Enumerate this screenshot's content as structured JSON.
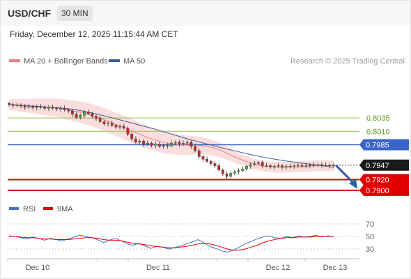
{
  "header": {
    "pair": "USD/CHF",
    "timeframe": "30 MIN",
    "datetime": "Friday, December 12, 2025 11:15:44 AM CET"
  },
  "legend": {
    "ma20_label": "MA 20 + Bollinger Bands",
    "ma50_label": "MA 50",
    "copyright": "Research © 2025 Trading Central",
    "rsi_label": "RSI",
    "rsi_ma_label": "9MA"
  },
  "colors": {
    "ma20": "#f08080",
    "ma50": "#3a5c9a",
    "band_fill": "#fbd7d7",
    "candle_up": "#4caf50",
    "candle_down": "#c62828",
    "pivot": "#3a64c8",
    "resistance": "#8bc34a",
    "support": "#e00000",
    "rsi": "#4472c4",
    "rsi_ma": "#e00000"
  },
  "chart_data": [
    {
      "type": "line",
      "title": "",
      "ylim": [
        0.7883,
        0.813
      ],
      "x_labels": [
        "Dec 10",
        "Dec 11",
        "Dec 12",
        "Dec 13"
      ],
      "price_axis_labels": [
        "0.8035",
        "0.8010",
        "0.7985",
        "0.7947",
        "0.7920",
        "0.7900"
      ],
      "levels": [
        {
          "value": 0.8035,
          "label": "0.8035",
          "kind": "resistance"
        },
        {
          "value": 0.801,
          "label": "0.8010",
          "kind": "resistance"
        },
        {
          "value": 0.7985,
          "label": "0.7985",
          "kind": "pivot"
        },
        {
          "value": 0.7947,
          "label": "0.7947",
          "kind": "last"
        },
        {
          "value": 0.792,
          "label": "0.7920",
          "kind": "support"
        },
        {
          "value": 0.79,
          "label": "0.7900",
          "kind": "support"
        }
      ],
      "projection": {
        "from": 0.7947,
        "to": 0.79,
        "direction": "down"
      },
      "series": [
        {
          "name": "Price",
          "values": [
            0.806,
            0.8058,
            0.8059,
            0.8057,
            0.8055,
            0.8056,
            0.8054,
            0.8056,
            0.8055,
            0.8053,
            0.8055,
            0.8053,
            0.8052,
            0.8053,
            0.805,
            0.8048,
            0.8042,
            0.8036,
            0.804,
            0.8046,
            0.8043,
            0.8038,
            0.8034,
            0.8028,
            0.8024,
            0.8025,
            0.8021,
            0.8018,
            0.8019,
            0.8016,
            0.8005,
            0.7996,
            0.799,
            0.7992,
            0.7986,
            0.7988,
            0.7984,
            0.7986,
            0.7982,
            0.7984,
            0.7983,
            0.7988,
            0.799,
            0.7986,
            0.7988,
            0.799,
            0.7982,
            0.7974,
            0.7963,
            0.7958,
            0.7954,
            0.795,
            0.7946,
            0.7938,
            0.7931,
            0.7926,
            0.7932,
            0.7935,
            0.7937,
            0.794,
            0.7945,
            0.7948,
            0.795,
            0.7952,
            0.7946,
            0.7946,
            0.7944,
            0.7945,
            0.7946,
            0.7943,
            0.7945,
            0.7944,
            0.7946,
            0.7947,
            0.7945,
            0.7947,
            0.7946,
            0.7947,
            0.7948,
            0.7947,
            0.7947,
            0.7946,
            0.7947
          ]
        },
        {
          "name": "MA 20",
          "values": [
            0.806,
            0.8059,
            0.8058,
            0.8057,
            0.8056,
            0.8055,
            0.8054,
            0.8051,
            0.8048,
            0.8045,
            0.8041,
            0.8036,
            0.803,
            0.8024,
            0.8018,
            0.8012,
            0.8005,
            0.7999,
            0.7994,
            0.799,
            0.7987,
            0.7985,
            0.7984,
            0.7984,
            0.7983,
            0.798,
            0.7975,
            0.7968,
            0.7961,
            0.7955,
            0.795,
            0.7946,
            0.7944,
            0.7943,
            0.7943,
            0.7944,
            0.7944,
            0.7945,
            0.7946,
            0.7946,
            0.7946
          ]
        },
        {
          "name": "MA 50",
          "values": [
            0.806,
            0.8058,
            0.8056,
            0.8054,
            0.8051,
            0.8045,
            0.8038,
            0.803,
            0.8022,
            0.8014,
            0.8005,
            0.7996,
            0.7988,
            0.798,
            0.7973,
            0.7966,
            0.796,
            0.7955,
            0.7951,
            0.7947,
            0.7943
          ]
        }
      ]
    },
    {
      "type": "line",
      "title": "",
      "ylim": [
        20,
        80
      ],
      "y_ticks": [
        "70",
        "50",
        "30"
      ],
      "series": [
        {
          "name": "RSI",
          "values": [
            51,
            50,
            48,
            46,
            49,
            47,
            44,
            47,
            45,
            43,
            46,
            49,
            52,
            50,
            48,
            45,
            40,
            44,
            47,
            43,
            38,
            36,
            39,
            35,
            31,
            34,
            33,
            30,
            32,
            35,
            38,
            41,
            45,
            40,
            34,
            31,
            27,
            25,
            28,
            33,
            38,
            42,
            46,
            49,
            51,
            48,
            47,
            50,
            48,
            51,
            49,
            50,
            52,
            49,
            51,
            50
          ]
        },
        {
          "name": "9MA",
          "values": [
            50,
            50,
            49,
            48,
            48,
            47,
            46,
            46,
            45,
            45,
            45,
            46,
            47,
            48,
            48,
            47,
            45,
            44,
            44,
            43,
            41,
            39,
            38,
            37,
            35,
            34,
            33,
            32,
            32,
            33,
            34,
            36,
            38,
            39,
            38,
            36,
            33,
            30,
            28,
            28,
            30,
            33,
            36,
            40,
            43,
            45,
            47,
            48,
            48,
            49,
            49,
            49,
            50,
            50,
            50,
            50
          ]
        }
      ]
    }
  ]
}
